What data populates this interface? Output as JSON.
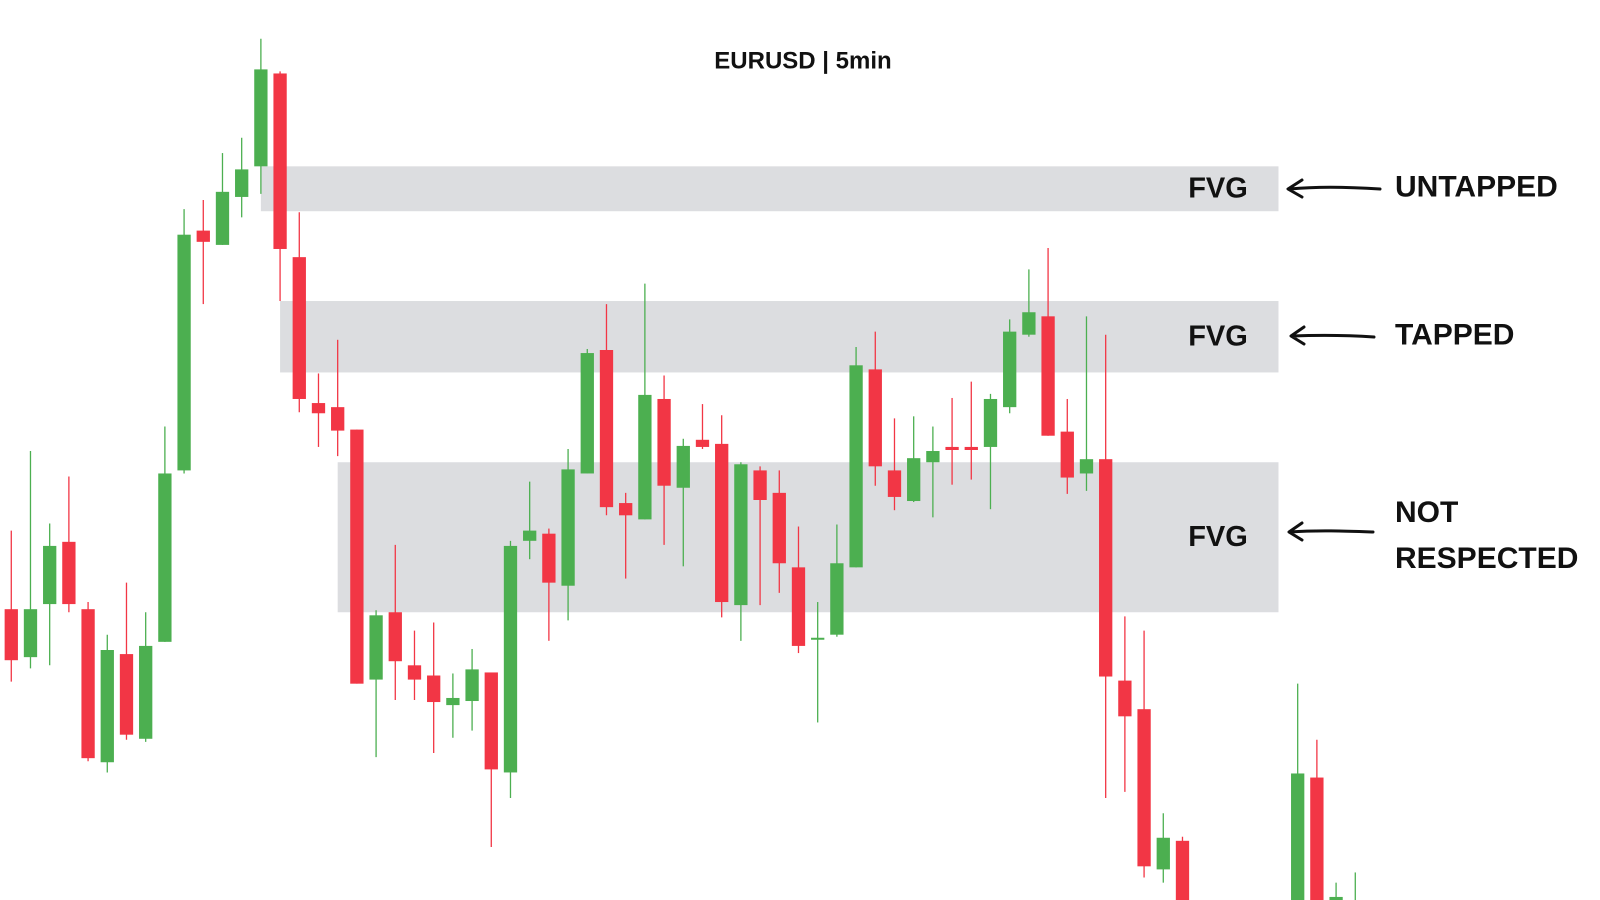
{
  "chart_data": {
    "type": "candlestick",
    "title": "EURUSD | 5min",
    "ylim": [
      0,
      882
    ],
    "up_color": "#4caf50",
    "down_color": "#f23645",
    "zone_color": "#dcdde0",
    "open": [
      285,
      238,
      290,
      351,
      285,
      135,
      241,
      158,
      253,
      421,
      656,
      642,
      689,
      719,
      810,
      630,
      487,
      483,
      461,
      216,
      282,
      230,
      220,
      191,
      195,
      223,
      125,
      352,
      359,
      308,
      418,
      539,
      389,
      373,
      491,
      404,
      451,
      447,
      289,
      421,
      399,
      326,
      256,
      260,
      326,
      520,
      421,
      391,
      429,
      444,
      444,
      444,
      483,
      554,
      572,
      459,
      418,
      432,
      215,
      187,
      30,
      58,
      null,
      null,
      null,
      null,
      null,
      0,
      120,
      0,
      0
    ],
    "high": [
      362,
      440,
      369,
      415,
      292,
      260,
      311,
      282,
      464,
      677,
      686,
      732,
      747,
      844,
      812,
      674,
      516,
      549,
      461,
      284,
      348,
      264,
      272,
      222,
      246,
      223,
      352,
      410,
      364,
      442,
      540,
      584,
      399,
      604,
      514,
      452,
      486,
      475,
      429,
      425,
      421,
      366,
      292,
      368,
      542,
      557,
      472,
      474,
      464,
      492,
      508,
      496,
      569,
      618,
      639,
      491,
      572,
      554,
      278,
      264,
      85,
      62,
      null,
      null,
      null,
      null,
      null,
      212,
      157,
      17,
      27
    ],
    "low": [
      214,
      227,
      230,
      282,
      136,
      125,
      157,
      155,
      253,
      418,
      584,
      642,
      669,
      692,
      587,
      478,
      444,
      435,
      212,
      140,
      196,
      196,
      144,
      159,
      166,
      52,
      100,
      334,
      254,
      274,
      418,
      377,
      315,
      373,
      348,
      327,
      442,
      277,
      254,
      289,
      301,
      242,
      174,
      258,
      326,
      406,
      382,
      390,
      375,
      407,
      412,
      383,
      477,
      552,
      455,
      398,
      401,
      100,
      106,
      22,
      17,
      0,
      null,
      null,
      null,
      null,
      null,
      0,
      0,
      0,
      0
    ],
    "close": [
      235,
      285,
      347,
      290,
      139,
      245,
      162,
      249,
      418,
      652,
      645,
      694,
      716,
      814,
      638,
      491,
      477,
      460,
      212,
      279,
      234,
      216,
      194,
      198,
      226,
      128,
      347,
      362,
      311,
      422,
      536,
      385,
      377,
      495,
      406,
      445,
      444,
      292,
      427,
      392,
      330,
      249,
      257,
      330,
      524,
      425,
      395,
      433,
      440,
      441,
      441,
      491,
      557,
      576,
      455,
      414,
      432,
      219,
      180,
      33,
      61,
      0,
      null,
      null,
      null,
      null,
      null,
      124,
      0,
      3,
      0
    ],
    "zones": [
      {
        "label": "FVG",
        "annotation": [
          "UNTAPPED"
        ],
        "top": 719,
        "bottom": 675,
        "from": 13,
        "to": 66
      },
      {
        "label": "FVG",
        "annotation": [
          "TAPPED"
        ],
        "top": 587,
        "bottom": 517,
        "from": 14,
        "to": 66
      },
      {
        "label": "FVG",
        "annotation": [
          "NOT",
          "RESPECTED"
        ],
        "top": 429,
        "bottom": 282,
        "from": 17,
        "to": 66
      }
    ]
  }
}
